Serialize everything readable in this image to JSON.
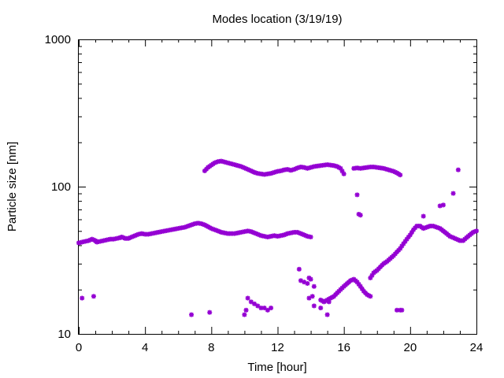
{
  "chart_data": {
    "type": "scatter",
    "title": "Modes location (3/19/19)",
    "xlabel": "Time [hour]",
    "ylabel": "Particle size [nm]",
    "xlim": [
      0,
      24
    ],
    "ylim": [
      10,
      1000
    ],
    "yscale": "log",
    "grid": false,
    "x_ticks": [
      0,
      4,
      8,
      12,
      16,
      20,
      24
    ],
    "x_tick_labels": [
      "0",
      "4",
      "8",
      "12",
      "16",
      "20",
      "24"
    ],
    "y_ticks": [
      10,
      100,
      1000
    ],
    "y_tick_labels": [
      "10",
      "100",
      "1000"
    ],
    "marker_color": "#9400d3",
    "marker": "asterisk",
    "series": [
      {
        "segments": [
          [
            [
              0.0,
              41.5
            ],
            [
              0.2,
              42
            ],
            [
              0.4,
              42.5
            ],
            [
              0.6,
              43
            ],
            [
              0.8,
              44
            ],
            [
              1.0,
              43
            ],
            [
              1.1,
              42
            ],
            [
              1.3,
              42.5
            ],
            [
              1.5,
              43
            ],
            [
              1.7,
              43.5
            ],
            [
              1.9,
              44
            ],
            [
              2.1,
              44
            ],
            [
              2.3,
              44.5
            ],
            [
              2.5,
              45
            ],
            [
              2.6,
              45.5
            ],
            [
              2.8,
              44.5
            ],
            [
              3.0,
              44.5
            ],
            [
              3.2,
              45.5
            ],
            [
              3.4,
              46.5
            ],
            [
              3.6,
              47.5
            ],
            [
              3.8,
              48
            ],
            [
              4.0,
              47.5
            ],
            [
              4.2,
              47.5
            ],
            [
              4.4,
              48
            ],
            [
              4.6,
              48.5
            ],
            [
              4.8,
              49
            ],
            [
              5.0,
              49.5
            ],
            [
              5.2,
              50
            ],
            [
              5.4,
              50.5
            ],
            [
              5.6,
              51
            ],
            [
              5.8,
              51.5
            ],
            [
              6.0,
              52
            ],
            [
              6.2,
              52.5
            ],
            [
              6.4,
              53
            ],
            [
              6.6,
              54
            ],
            [
              6.8,
              55
            ],
            [
              7.0,
              56
            ],
            [
              7.2,
              56.5
            ],
            [
              7.4,
              56
            ],
            [
              7.6,
              55
            ],
            [
              7.8,
              53.5
            ],
            [
              8.0,
              52
            ],
            [
              8.2,
              51
            ],
            [
              8.4,
              50
            ],
            [
              8.6,
              49
            ],
            [
              8.8,
              48.5
            ],
            [
              9.0,
              48
            ],
            [
              9.2,
              48
            ],
            [
              9.4,
              48
            ],
            [
              9.6,
              48.5
            ],
            [
              9.8,
              49
            ],
            [
              10.0,
              49.5
            ],
            [
              10.2,
              50
            ],
            [
              10.4,
              49.5
            ],
            [
              10.6,
              48.5
            ],
            [
              10.8,
              47.5
            ],
            [
              11.0,
              46.5
            ],
            [
              11.2,
              46
            ],
            [
              11.4,
              45.5
            ],
            [
              11.6,
              46
            ],
            [
              11.8,
              46.5
            ],
            [
              12.0,
              46
            ],
            [
              12.2,
              46.5
            ],
            [
              12.4,
              47
            ],
            [
              12.6,
              48
            ],
            [
              12.8,
              48.5
            ],
            [
              13.0,
              49
            ],
            [
              13.2,
              49
            ],
            [
              13.4,
              48
            ],
            [
              13.6,
              47
            ],
            [
              13.8,
              46
            ],
            [
              14.0,
              45.5
            ]
          ],
          [
            [
              7.6,
              128
            ],
            [
              7.8,
              135
            ],
            [
              8.0,
              140
            ],
            [
              8.2,
              145
            ],
            [
              8.4,
              148
            ],
            [
              8.6,
              149
            ],
            [
              8.8,
              147
            ],
            [
              9.0,
              145
            ],
            [
              9.2,
              143
            ],
            [
              9.4,
              141
            ],
            [
              9.6,
              139
            ],
            [
              9.8,
              137
            ],
            [
              10.0,
              134
            ],
            [
              10.2,
              131
            ],
            [
              10.4,
              128
            ],
            [
              10.6,
              125
            ],
            [
              10.8,
              123
            ],
            [
              11.0,
              122
            ],
            [
              11.2,
              121
            ],
            [
              11.4,
              122
            ],
            [
              11.6,
              123
            ],
            [
              11.8,
              125
            ],
            [
              12.0,
              127
            ],
            [
              12.2,
              128
            ],
            [
              12.4,
              130
            ],
            [
              12.6,
              131
            ],
            [
              12.8,
              129
            ],
            [
              13.0,
              131
            ],
            [
              13.2,
              134
            ],
            [
              13.4,
              136
            ],
            [
              13.6,
              135
            ],
            [
              13.8,
              133
            ],
            [
              14.0,
              135
            ],
            [
              14.2,
              137
            ],
            [
              14.4,
              138
            ],
            [
              14.6,
              139
            ],
            [
              14.8,
              140
            ],
            [
              15.0,
              141
            ],
            [
              15.2,
              140
            ],
            [
              15.4,
              139
            ],
            [
              15.6,
              137
            ],
            [
              15.8,
              133
            ],
            [
              16.0,
              122
            ]
          ],
          [
            [
              16.6,
              133
            ],
            [
              16.8,
              134
            ],
            [
              17.0,
              133
            ],
            [
              17.2,
              134
            ],
            [
              17.4,
              135
            ],
            [
              17.6,
              136
            ],
            [
              17.8,
              136
            ],
            [
              18.0,
              135
            ],
            [
              18.2,
              134
            ],
            [
              18.4,
              133
            ],
            [
              18.6,
              131
            ],
            [
              18.8,
              129
            ],
            [
              19.0,
              127
            ],
            [
              19.2,
              124
            ],
            [
              19.4,
              120
            ]
          ],
          [
            [
              14.6,
              17
            ],
            [
              14.8,
              16.5
            ],
            [
              15.0,
              17
            ],
            [
              15.2,
              17.5
            ],
            [
              15.4,
              18
            ],
            [
              15.6,
              19
            ],
            [
              15.8,
              20
            ],
            [
              16.0,
              21
            ],
            [
              16.2,
              22
            ],
            [
              16.4,
              23
            ],
            [
              16.6,
              23.5
            ],
            [
              16.8,
              22.5
            ],
            [
              17.0,
              21
            ],
            [
              17.2,
              19.5
            ],
            [
              17.4,
              18.5
            ],
            [
              17.6,
              18
            ]
          ],
          [
            [
              17.6,
              24
            ],
            [
              17.8,
              26
            ],
            [
              18.0,
              27
            ],
            [
              18.2,
              28.5
            ],
            [
              18.4,
              30
            ],
            [
              18.6,
              31
            ],
            [
              18.8,
              32.5
            ],
            [
              19.0,
              34
            ],
            [
              19.2,
              36
            ],
            [
              19.4,
              38
            ],
            [
              19.6,
              41
            ],
            [
              19.8,
              44
            ],
            [
              20.0,
              47
            ],
            [
              20.2,
              51
            ],
            [
              20.4,
              54
            ],
            [
              20.6,
              54
            ],
            [
              20.8,
              52
            ],
            [
              21.0,
              53
            ],
            [
              21.2,
              54
            ],
            [
              21.4,
              54
            ],
            [
              21.6,
              53
            ],
            [
              21.8,
              52
            ],
            [
              22.0,
              50
            ],
            [
              22.2,
              48
            ],
            [
              22.4,
              46
            ],
            [
              22.6,
              45
            ],
            [
              22.8,
              44
            ],
            [
              23.0,
              43
            ],
            [
              23.2,
              43
            ],
            [
              23.4,
              45
            ],
            [
              23.6,
              47
            ],
            [
              23.8,
              49
            ],
            [
              24.0,
              50
            ]
          ]
        ],
        "points": [
          [
            0.2,
            17.5
          ],
          [
            0.9,
            18
          ],
          [
            6.8,
            13.5
          ],
          [
            7.9,
            14
          ],
          [
            10.0,
            13.5
          ],
          [
            10.1,
            14.5
          ],
          [
            10.2,
            17.5
          ],
          [
            10.4,
            16.5
          ],
          [
            10.6,
            16
          ],
          [
            10.8,
            15.5
          ],
          [
            11.0,
            15
          ],
          [
            11.2,
            15
          ],
          [
            11.4,
            14.5
          ],
          [
            11.6,
            15
          ],
          [
            13.3,
            27.5
          ],
          [
            13.4,
            23
          ],
          [
            13.6,
            22.5
          ],
          [
            13.8,
            22
          ],
          [
            13.9,
            24
          ],
          [
            14.0,
            23.5
          ],
          [
            13.9,
            17.5
          ],
          [
            14.1,
            18
          ],
          [
            14.2,
            21
          ],
          [
            14.2,
            15.5
          ],
          [
            14.6,
            15
          ],
          [
            15.0,
            13.5
          ],
          [
            15.1,
            16.5
          ],
          [
            16.8,
            88
          ],
          [
            16.9,
            65
          ],
          [
            17.0,
            64
          ],
          [
            19.2,
            14.5
          ],
          [
            19.4,
            14.5
          ],
          [
            19.5,
            14.5
          ],
          [
            20.8,
            63
          ],
          [
            21.8,
            74
          ],
          [
            22.0,
            75
          ],
          [
            22.6,
            90
          ],
          [
            22.9,
            130
          ]
        ]
      }
    ]
  }
}
